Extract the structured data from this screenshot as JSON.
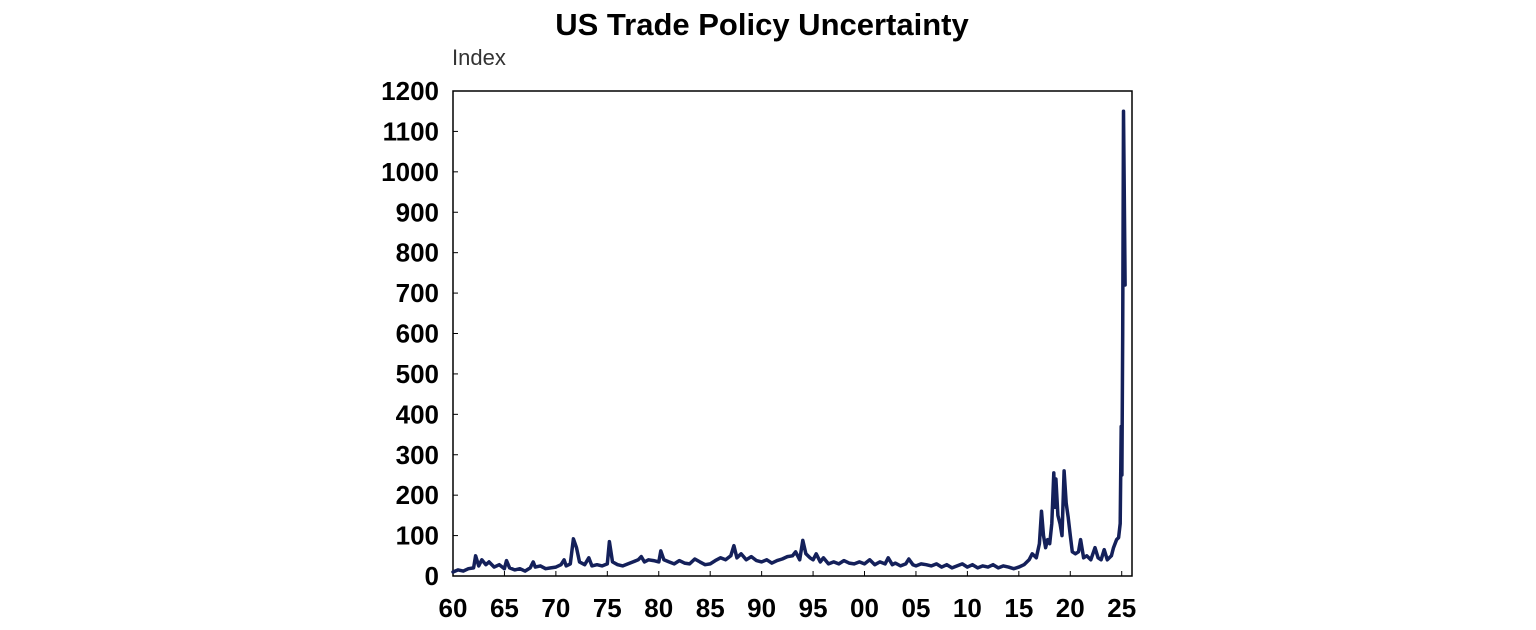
{
  "chart_data": {
    "type": "line",
    "title": "US Trade Policy Uncertainty",
    "unit_label": "Index",
    "xlabel": "",
    "ylabel": "",
    "xlim": [
      1960,
      2026
    ],
    "ylim": [
      0,
      1200
    ],
    "y_ticks": [
      0,
      100,
      200,
      300,
      400,
      500,
      600,
      700,
      800,
      900,
      1000,
      1100,
      1200
    ],
    "x_ticks": [
      {
        "year": 1960,
        "label": "60"
      },
      {
        "year": 1965,
        "label": "65"
      },
      {
        "year": 1970,
        "label": "70"
      },
      {
        "year": 1975,
        "label": "75"
      },
      {
        "year": 1980,
        "label": "80"
      },
      {
        "year": 1985,
        "label": "85"
      },
      {
        "year": 1990,
        "label": "90"
      },
      {
        "year": 1995,
        "label": "95"
      },
      {
        "year": 2000,
        "label": "00"
      },
      {
        "year": 2005,
        "label": "05"
      },
      {
        "year": 2010,
        "label": "10"
      },
      {
        "year": 2015,
        "label": "15"
      },
      {
        "year": 2020,
        "label": "20"
      },
      {
        "year": 2025,
        "label": "25"
      }
    ],
    "grid": false,
    "legend": "none",
    "colors": {
      "series": "#14205a",
      "axis": "#000000"
    },
    "series": [
      {
        "color": "#14205a",
        "points": [
          [
            1960.0,
            10
          ],
          [
            1960.5,
            15
          ],
          [
            1961.0,
            12
          ],
          [
            1961.5,
            18
          ],
          [
            1962.0,
            20
          ],
          [
            1962.2,
            50
          ],
          [
            1962.5,
            25
          ],
          [
            1962.8,
            40
          ],
          [
            1963.2,
            28
          ],
          [
            1963.5,
            35
          ],
          [
            1964.0,
            22
          ],
          [
            1964.5,
            28
          ],
          [
            1965.0,
            18
          ],
          [
            1965.2,
            38
          ],
          [
            1965.5,
            20
          ],
          [
            1966.0,
            15
          ],
          [
            1966.5,
            18
          ],
          [
            1967.0,
            12
          ],
          [
            1967.5,
            20
          ],
          [
            1967.8,
            35
          ],
          [
            1968.0,
            22
          ],
          [
            1968.5,
            25
          ],
          [
            1969.0,
            18
          ],
          [
            1969.5,
            20
          ],
          [
            1970.0,
            22
          ],
          [
            1970.5,
            28
          ],
          [
            1970.8,
            40
          ],
          [
            1971.0,
            25
          ],
          [
            1971.4,
            30
          ],
          [
            1971.7,
            92
          ],
          [
            1972.0,
            70
          ],
          [
            1972.3,
            35
          ],
          [
            1972.8,
            28
          ],
          [
            1973.2,
            45
          ],
          [
            1973.5,
            25
          ],
          [
            1974.0,
            28
          ],
          [
            1974.5,
            25
          ],
          [
            1975.0,
            30
          ],
          [
            1975.2,
            85
          ],
          [
            1975.5,
            35
          ],
          [
            1976.0,
            28
          ],
          [
            1976.5,
            25
          ],
          [
            1977.0,
            30
          ],
          [
            1977.5,
            35
          ],
          [
            1978.0,
            40
          ],
          [
            1978.3,
            48
          ],
          [
            1978.6,
            35
          ],
          [
            1979.0,
            40
          ],
          [
            1979.5,
            38
          ],
          [
            1980.0,
            35
          ],
          [
            1980.2,
            62
          ],
          [
            1980.5,
            40
          ],
          [
            1981.0,
            35
          ],
          [
            1981.5,
            30
          ],
          [
            1982.0,
            38
          ],
          [
            1982.5,
            32
          ],
          [
            1983.0,
            30
          ],
          [
            1983.5,
            42
          ],
          [
            1984.0,
            35
          ],
          [
            1984.5,
            28
          ],
          [
            1985.0,
            30
          ],
          [
            1985.5,
            38
          ],
          [
            1986.0,
            45
          ],
          [
            1986.5,
            40
          ],
          [
            1987.0,
            50
          ],
          [
            1987.3,
            75
          ],
          [
            1987.6,
            45
          ],
          [
            1988.0,
            55
          ],
          [
            1988.5,
            40
          ],
          [
            1989.0,
            48
          ],
          [
            1989.5,
            38
          ],
          [
            1990.0,
            35
          ],
          [
            1990.5,
            40
          ],
          [
            1991.0,
            32
          ],
          [
            1991.5,
            38
          ],
          [
            1992.0,
            42
          ],
          [
            1992.5,
            48
          ],
          [
            1993.0,
            50
          ],
          [
            1993.3,
            60
          ],
          [
            1993.7,
            40
          ],
          [
            1994.0,
            88
          ],
          [
            1994.3,
            55
          ],
          [
            1994.7,
            45
          ],
          [
            1995.0,
            40
          ],
          [
            1995.3,
            55
          ],
          [
            1995.7,
            35
          ],
          [
            1996.0,
            45
          ],
          [
            1996.5,
            30
          ],
          [
            1997.0,
            35
          ],
          [
            1997.5,
            30
          ],
          [
            1998.0,
            38
          ],
          [
            1998.5,
            32
          ],
          [
            1999.0,
            30
          ],
          [
            1999.5,
            35
          ],
          [
            2000.0,
            30
          ],
          [
            2000.5,
            40
          ],
          [
            2001.0,
            28
          ],
          [
            2001.5,
            35
          ],
          [
            2002.0,
            30
          ],
          [
            2002.3,
            45
          ],
          [
            2002.7,
            28
          ],
          [
            2003.0,
            32
          ],
          [
            2003.5,
            25
          ],
          [
            2004.0,
            30
          ],
          [
            2004.3,
            42
          ],
          [
            2004.7,
            28
          ],
          [
            2005.0,
            25
          ],
          [
            2005.5,
            30
          ],
          [
            2006.0,
            28
          ],
          [
            2006.5,
            25
          ],
          [
            2007.0,
            30
          ],
          [
            2007.5,
            22
          ],
          [
            2008.0,
            28
          ],
          [
            2008.5,
            20
          ],
          [
            2009.0,
            25
          ],
          [
            2009.5,
            30
          ],
          [
            2010.0,
            22
          ],
          [
            2010.5,
            28
          ],
          [
            2011.0,
            20
          ],
          [
            2011.5,
            25
          ],
          [
            2012.0,
            22
          ],
          [
            2012.5,
            28
          ],
          [
            2013.0,
            20
          ],
          [
            2013.5,
            25
          ],
          [
            2014.0,
            22
          ],
          [
            2014.5,
            18
          ],
          [
            2015.0,
            22
          ],
          [
            2015.5,
            28
          ],
          [
            2016.0,
            40
          ],
          [
            2016.3,
            55
          ],
          [
            2016.7,
            45
          ],
          [
            2017.0,
            80
          ],
          [
            2017.2,
            160
          ],
          [
            2017.4,
            100
          ],
          [
            2017.6,
            70
          ],
          [
            2017.8,
            90
          ],
          [
            2018.0,
            80
          ],
          [
            2018.2,
            130
          ],
          [
            2018.4,
            255
          ],
          [
            2018.5,
            170
          ],
          [
            2018.6,
            240
          ],
          [
            2018.8,
            150
          ],
          [
            2019.0,
            130
          ],
          [
            2019.2,
            100
          ],
          [
            2019.4,
            260
          ],
          [
            2019.6,
            180
          ],
          [
            2019.8,
            145
          ],
          [
            2020.0,
            100
          ],
          [
            2020.2,
            60
          ],
          [
            2020.5,
            55
          ],
          [
            2020.8,
            60
          ],
          [
            2021.0,
            90
          ],
          [
            2021.3,
            45
          ],
          [
            2021.6,
            50
          ],
          [
            2022.0,
            40
          ],
          [
            2022.4,
            70
          ],
          [
            2022.7,
            45
          ],
          [
            2023.0,
            40
          ],
          [
            2023.3,
            65
          ],
          [
            2023.6,
            40
          ],
          [
            2024.0,
            50
          ],
          [
            2024.2,
            70
          ],
          [
            2024.5,
            90
          ],
          [
            2024.7,
            95
          ],
          [
            2024.85,
            130
          ],
          [
            2024.95,
            370
          ],
          [
            2025.02,
            250
          ],
          [
            2025.1,
            600
          ],
          [
            2025.17,
            1150
          ],
          [
            2025.25,
            940
          ],
          [
            2025.33,
            720
          ]
        ]
      }
    ]
  }
}
